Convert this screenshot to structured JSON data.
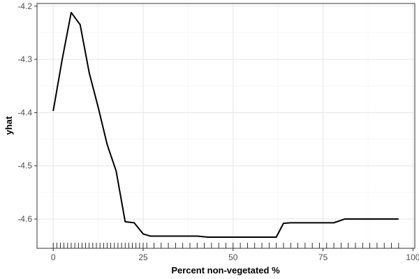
{
  "chart_data": {
    "type": "line",
    "title": "",
    "xlabel": "Percent non-vegetated %",
    "ylabel": "yhat",
    "xlim": [
      -4.5,
      100.5
    ],
    "ylim": [
      -4.655,
      -4.195
    ],
    "x_ticks": [
      0,
      25,
      50,
      75,
      100
    ],
    "x_tick_labels": [
      "0",
      "25",
      "50",
      "75",
      "100"
    ],
    "y_ticks": [
      -4.2,
      -4.3,
      -4.4,
      -4.5,
      -4.6
    ],
    "y_tick_labels": [
      "-4.2",
      "-4.3",
      "-4.4",
      "-4.5",
      "-4.6"
    ],
    "grid": true,
    "border": true,
    "series": [
      {
        "x": [
          0,
          2.5,
          5,
          7.5,
          10,
          12.5,
          15,
          17.5,
          20,
          22.5,
          25,
          27,
          30,
          35,
          40,
          43,
          50,
          55,
          60,
          62,
          64,
          66,
          70,
          75,
          78,
          81,
          85,
          90,
          96
        ],
        "y": [
          -4.397,
          -4.3,
          -4.212,
          -4.235,
          -4.325,
          -4.39,
          -4.46,
          -4.51,
          -4.605,
          -4.607,
          -4.628,
          -4.632,
          -4.632,
          -4.632,
          -4.632,
          -4.634,
          -4.634,
          -4.634,
          -4.634,
          -4.634,
          -4.608,
          -4.607,
          -4.607,
          -4.607,
          -4.607,
          -4.6,
          -4.6,
          -4.6,
          -4.6
        ],
        "color": "#000000"
      }
    ],
    "rug": [
      0,
      1,
      2,
      3,
      4,
      5,
      6,
      7,
      8,
      9,
      10,
      11,
      12,
      13,
      14,
      15,
      16,
      17,
      18,
      19,
      20,
      21,
      22,
      23,
      24,
      25,
      26,
      28,
      30,
      32,
      34,
      36,
      38,
      40,
      42,
      44,
      46,
      48,
      50,
      52,
      54,
      56,
      58,
      60,
      62,
      64,
      66,
      68,
      70,
      72,
      74,
      76,
      78,
      80,
      82,
      84,
      86,
      88,
      90,
      92,
      94,
      96
    ]
  }
}
